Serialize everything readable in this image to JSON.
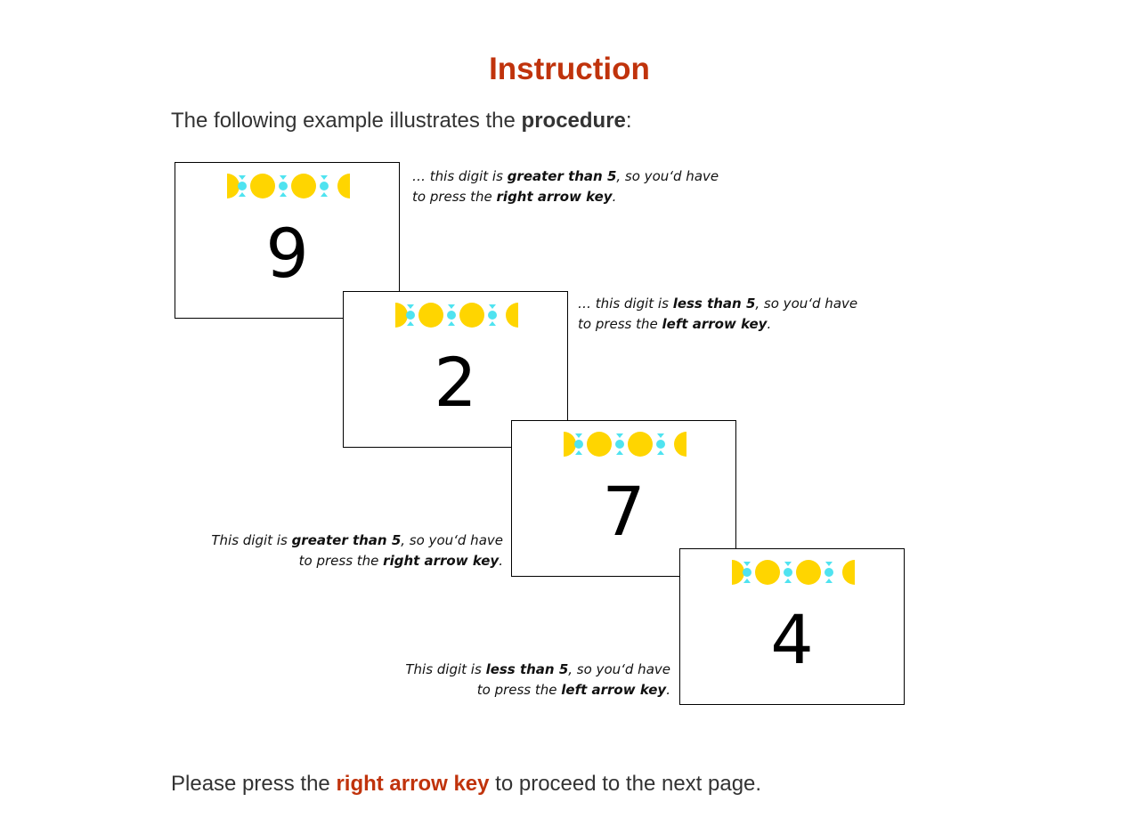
{
  "page": {
    "title": "Instruction",
    "intro": {
      "before": "The following example illustrates the ",
      "bold": "procedure",
      "after": ":"
    },
    "footer": {
      "before": "Please press the ",
      "key": "right arrow key",
      "after": " to proceed to the next page."
    }
  },
  "colors": {
    "title": "#c0330c",
    "stim_yellow": "#ffd500",
    "stim_cyan": "#4fe3f0"
  },
  "cards": [
    {
      "digit": "9",
      "note": {
        "l1_a": "… this digit is ",
        "l1_b": "greater than 5",
        "l1_c": ", so you‘d have",
        "l2_a": "to press the ",
        "l2_b": "right arrow key",
        "l2_c": "."
      }
    },
    {
      "digit": "2",
      "note": {
        "l1_a": "… this digit is ",
        "l1_b": "less than 5",
        "l1_c": ", so you‘d have",
        "l2_a": "to press the ",
        "l2_b": "left arrow key",
        "l2_c": "."
      }
    },
    {
      "digit": "7",
      "note": {
        "l1_a": "This digit is ",
        "l1_b": "greater than 5",
        "l1_c": ", so you‘d have",
        "l2_a": "to press the ",
        "l2_b": "right arrow key",
        "l2_c": "."
      }
    },
    {
      "digit": "4",
      "note": {
        "l1_a": "This digit is ",
        "l1_b": "less than 5",
        "l1_c": ", so you‘d have",
        "l2_a": "to press the  ",
        "l2_b": "left arrow key",
        "l2_c": "."
      }
    }
  ]
}
